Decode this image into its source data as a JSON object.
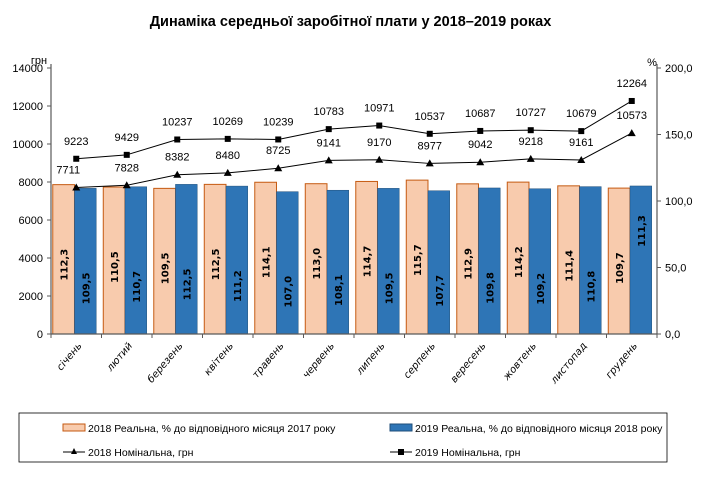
{
  "chart_data": {
    "type": "bar+line",
    "title": "Динаміка середньої заробітної плати у 2018–2019 роках",
    "categories": [
      "січень",
      "лютий",
      "березень",
      "квітень",
      "травень",
      "червень",
      "липень",
      "серпень",
      "вересень",
      "жовтень",
      "листопад",
      "грудень"
    ],
    "left_axis": {
      "unit": "грн",
      "ylim": [
        0,
        14000
      ],
      "ticks": [
        "0",
        "2000",
        "4000",
        "6000",
        "8000",
        "10000",
        "12000",
        "14000"
      ]
    },
    "right_axis": {
      "unit": "%",
      "ylim": [
        0,
        200
      ],
      "ticks": [
        "0,0",
        "50,0",
        "100,0",
        "150,0",
        "200,0"
      ]
    },
    "series": [
      {
        "name": "2018 Реальна, % до відповідного місяця 2017 року",
        "type": "bar",
        "axis": "right",
        "color": "#F8CBAD",
        "edge": "#C55A11",
        "values": [
          112.3,
          110.5,
          109.5,
          112.5,
          114.1,
          113.0,
          114.7,
          115.7,
          112.9,
          114.2,
          111.4,
          109.7
        ],
        "labels": [
          "112,3",
          "110,5",
          "109,5",
          "112,5",
          "114,1",
          "113,0",
          "114,7",
          "115,7",
          "112,9",
          "114,2",
          "111,4",
          "109,7"
        ]
      },
      {
        "name": "2019 Реальна, % до відповідного місяця 2018 року",
        "type": "bar",
        "axis": "right",
        "color": "#2E75B6",
        "edge": "#1F4E79",
        "values": [
          109.5,
          110.7,
          112.5,
          111.2,
          107.0,
          108.1,
          109.5,
          107.7,
          109.8,
          109.2,
          110.8,
          111.3
        ],
        "labels": [
          "109,5",
          "110,7",
          "112,5",
          "111,2",
          "107,0",
          "108,1",
          "109,5",
          "107,7",
          "109,8",
          "109,2",
          "110,8",
          "111,3"
        ]
      },
      {
        "name": "2018 Номінальна, грн",
        "type": "line",
        "axis": "left",
        "marker": "triangle",
        "color": "#000000",
        "values": [
          7711,
          7828,
          8382,
          8480,
          8725,
          9141,
          9170,
          8977,
          9042,
          9218,
          9161,
          10573
        ]
      },
      {
        "name": "2019 Номінальна, грн",
        "type": "line",
        "axis": "left",
        "marker": "square",
        "color": "#000000",
        "values": [
          9223,
          9429,
          10237,
          10269,
          10239,
          10783,
          10971,
          10537,
          10687,
          10727,
          10679,
          12264
        ]
      }
    ],
    "grid": false,
    "legend": "bottom"
  }
}
